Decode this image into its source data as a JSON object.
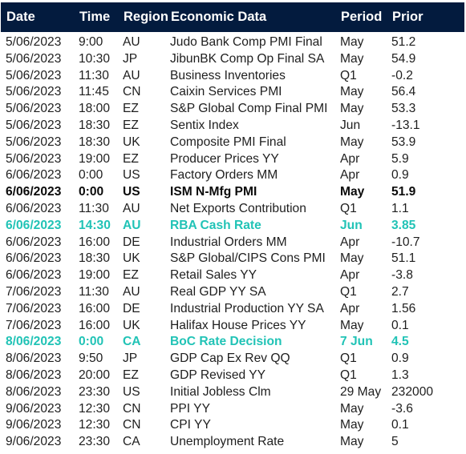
{
  "header": {
    "date": "Date",
    "time": "Time",
    "region": "Region",
    "event": "Economic Data",
    "period": "Period",
    "prior": "Prior"
  },
  "rows": [
    {
      "date": "5/06/2023",
      "time": "9:00",
      "region": "AU",
      "event": "Judo Bank Comp PMI Final",
      "period": "May",
      "prior": "51.2",
      "style": "normal"
    },
    {
      "date": "5/06/2023",
      "time": "10:30",
      "region": "JP",
      "event": "JibunBK Comp Op Final SA",
      "period": "May",
      "prior": "54.9",
      "style": "normal"
    },
    {
      "date": "5/06/2023",
      "time": "11:30",
      "region": "AU",
      "event": "Business Inventories",
      "period": "Q1",
      "prior": "-0.2",
      "style": "normal"
    },
    {
      "date": "5/06/2023",
      "time": "11:45",
      "region": "CN",
      "event": "Caixin Services PMI",
      "period": "May",
      "prior": "56.4",
      "style": "normal"
    },
    {
      "date": "5/06/2023",
      "time": "18:00",
      "region": "EZ",
      "event": "S&P Global Comp Final PMI",
      "period": "May",
      "prior": "53.3",
      "style": "normal"
    },
    {
      "date": "5/06/2023",
      "time": "18:30",
      "region": "EZ",
      "event": "Sentix Index",
      "period": "Jun",
      "prior": "-13.1",
      "style": "normal"
    },
    {
      "date": "5/06/2023",
      "time": "18:30",
      "region": "UK",
      "event": "Composite PMI Final",
      "period": "May",
      "prior": "53.9",
      "style": "normal"
    },
    {
      "date": "5/06/2023",
      "time": "19:00",
      "region": "EZ",
      "event": "Producer Prices YY",
      "period": "Apr",
      "prior": "5.9",
      "style": "normal"
    },
    {
      "date": "6/06/2023",
      "time": "0:00",
      "region": "US",
      "event": "Factory Orders MM",
      "period": "Apr",
      "prior": "0.9",
      "style": "normal"
    },
    {
      "date": "6/06/2023",
      "time": "0:00",
      "region": "US",
      "event": "ISM N-Mfg PMI",
      "period": "May",
      "prior": "51.9",
      "style": "bold"
    },
    {
      "date": "6/06/2023",
      "time": "11:30",
      "region": "AU",
      "event": "Net Exports Contribution",
      "period": "Q1",
      "prior": "1.1",
      "style": "normal"
    },
    {
      "date": "6/06/2023",
      "time": "14:30",
      "region": "AU",
      "event": "RBA Cash Rate",
      "period": "Jun",
      "prior": "3.85",
      "style": "highlight"
    },
    {
      "date": "6/06/2023",
      "time": "16:00",
      "region": "DE",
      "event": "Industrial Orders MM",
      "period": "Apr",
      "prior": "-10.7",
      "style": "normal"
    },
    {
      "date": "6/06/2023",
      "time": "18:30",
      "region": "UK",
      "event": "S&P Global/CIPS Cons PMI",
      "period": "May",
      "prior": "51.1",
      "style": "normal"
    },
    {
      "date": "6/06/2023",
      "time": "19:00",
      "region": "EZ",
      "event": "Retail Sales YY",
      "period": "Apr",
      "prior": "-3.8",
      "style": "normal"
    },
    {
      "date": "7/06/2023",
      "time": "11:30",
      "region": "AU",
      "event": "Real GDP YY SA",
      "period": "Q1",
      "prior": "2.7",
      "style": "normal"
    },
    {
      "date": "7/06/2023",
      "time": "16:00",
      "region": "DE",
      "event": "Industrial Production YY SA",
      "period": "Apr",
      "prior": "1.56",
      "style": "normal"
    },
    {
      "date": "7/06/2023",
      "time": "16:00",
      "region": "UK",
      "event": "Halifax House Prices YY",
      "period": "May",
      "prior": "0.1",
      "style": "normal"
    },
    {
      "date": "8/06/2023",
      "time": "0:00",
      "region": "CA",
      "event": "BoC Rate Decision",
      "period": "7 Jun",
      "prior": "4.5",
      "style": "highlight"
    },
    {
      "date": "8/06/2023",
      "time": "9:50",
      "region": "JP",
      "event": "GDP Cap Ex Rev QQ",
      "period": "Q1",
      "prior": "0.9",
      "style": "normal"
    },
    {
      "date": "8/06/2023",
      "time": "20:00",
      "region": "EZ",
      "event": "GDP Revised YY",
      "period": "Q1",
      "prior": "1.3",
      "style": "normal"
    },
    {
      "date": "8/06/2023",
      "time": "23:30",
      "region": "US",
      "event": "Initial Jobless Clm",
      "period": "29 May",
      "prior": "232000",
      "style": "normal"
    },
    {
      "date": "9/06/2023",
      "time": "12:30",
      "region": "CN",
      "event": "PPI YY",
      "period": "May",
      "prior": "-3.6",
      "style": "normal"
    },
    {
      "date": "9/06/2023",
      "time": "12:30",
      "region": "CN",
      "event": "CPI YY",
      "period": "May",
      "prior": "0.1",
      "style": "normal"
    },
    {
      "date": "9/06/2023",
      "time": "23:30",
      "region": "CA",
      "event": "Unemployment Rate",
      "period": "May",
      "prior": "5",
      "style": "normal"
    }
  ],
  "colors": {
    "header_bg": "#031b3e",
    "header_text": "#ffffff",
    "highlight": "#21c3b6",
    "text": "#1e1e1e"
  }
}
